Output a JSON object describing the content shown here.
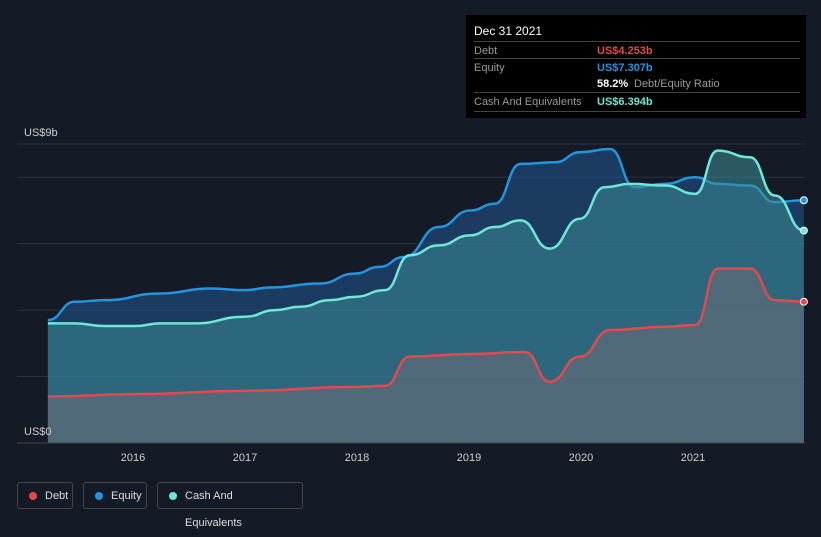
{
  "tooltip": {
    "date": "Dec 31 2021",
    "debt_label": "Debt",
    "debt_value": "US$4.253b",
    "equity_label": "Equity",
    "equity_value": "US$7.307b",
    "ratio_value": "58.2%",
    "ratio_label": "Debt/Equity Ratio",
    "cash_label": "Cash And Equivalents",
    "cash_value": "US$6.394b"
  },
  "legend": {
    "debt": "Debt",
    "equity": "Equity",
    "cash": "Cash And Equivalents"
  },
  "chart_data": {
    "type": "area",
    "ylabel_top": "US$9b",
    "ylabel_bottom": "US$0",
    "ylim": [
      0,
      9
    ],
    "xlim": [
      2015.24,
      2021.99
    ],
    "x_ticks": [
      "2016",
      "2017",
      "2018",
      "2019",
      "2020",
      "2021"
    ],
    "colors": {
      "debt": "#e5484d",
      "equity": "#2394df",
      "cash": "#6ee7d5"
    },
    "series": [
      {
        "name": "Equity",
        "key": "equity",
        "points": [
          [
            2015.24,
            3.7
          ],
          [
            2015.48,
            4.25
          ],
          [
            2015.75,
            4.3
          ],
          [
            2016.24,
            4.5
          ],
          [
            2016.69,
            4.65
          ],
          [
            2017,
            4.6
          ],
          [
            2017.22,
            4.68
          ],
          [
            2017.67,
            4.8
          ],
          [
            2017.98,
            5.1
          ],
          [
            2018.2,
            5.3
          ],
          [
            2018.42,
            5.6
          ],
          [
            2018.73,
            6.5
          ],
          [
            2019.01,
            7.0
          ],
          [
            2019.23,
            7.2
          ],
          [
            2019.46,
            8.4
          ],
          [
            2019.77,
            8.45
          ],
          [
            2019.99,
            8.75
          ],
          [
            2020.26,
            8.85
          ],
          [
            2020.48,
            7.7
          ],
          [
            2020.75,
            7.8
          ],
          [
            2021.02,
            8.0
          ],
          [
            2021.22,
            7.8
          ],
          [
            2021.51,
            7.75
          ],
          [
            2021.73,
            7.25
          ],
          [
            2021.99,
            7.307
          ]
        ]
      },
      {
        "name": "Cash And Equivalents",
        "key": "cash",
        "points": [
          [
            2015.24,
            3.6
          ],
          [
            2015.48,
            3.6
          ],
          [
            2015.75,
            3.52
          ],
          [
            2016.02,
            3.52
          ],
          [
            2016.24,
            3.6
          ],
          [
            2016.55,
            3.6
          ],
          [
            2017,
            3.8
          ],
          [
            2017.27,
            4.0
          ],
          [
            2017.49,
            4.1
          ],
          [
            2017.76,
            4.3
          ],
          [
            2017.98,
            4.4
          ],
          [
            2018.25,
            4.6
          ],
          [
            2018.47,
            5.65
          ],
          [
            2018.73,
            5.95
          ],
          [
            2019.01,
            6.25
          ],
          [
            2019.23,
            6.5
          ],
          [
            2019.46,
            6.7
          ],
          [
            2019.72,
            5.85
          ],
          [
            2019.99,
            6.75
          ],
          [
            2020.21,
            7.7
          ],
          [
            2020.44,
            7.8
          ],
          [
            2020.75,
            7.75
          ],
          [
            2021.02,
            7.5
          ],
          [
            2021.22,
            8.8
          ],
          [
            2021.51,
            8.6
          ],
          [
            2021.73,
            7.45
          ],
          [
            2021.99,
            6.394
          ]
        ]
      },
      {
        "name": "Debt",
        "key": "debt",
        "points": [
          [
            2015.24,
            1.4
          ],
          [
            2016,
            1.47
          ],
          [
            2017,
            1.57
          ],
          [
            2017.98,
            1.69
          ],
          [
            2018.25,
            1.72
          ],
          [
            2018.47,
            2.6
          ],
          [
            2019.01,
            2.68
          ],
          [
            2019.5,
            2.74
          ],
          [
            2019.72,
            1.84
          ],
          [
            2019.99,
            2.6
          ],
          [
            2020.26,
            3.4
          ],
          [
            2020.75,
            3.5
          ],
          [
            2021.02,
            3.55
          ],
          [
            2021.22,
            5.25
          ],
          [
            2021.51,
            5.25
          ],
          [
            2021.73,
            4.3
          ],
          [
            2021.99,
            4.253
          ]
        ]
      }
    ]
  }
}
